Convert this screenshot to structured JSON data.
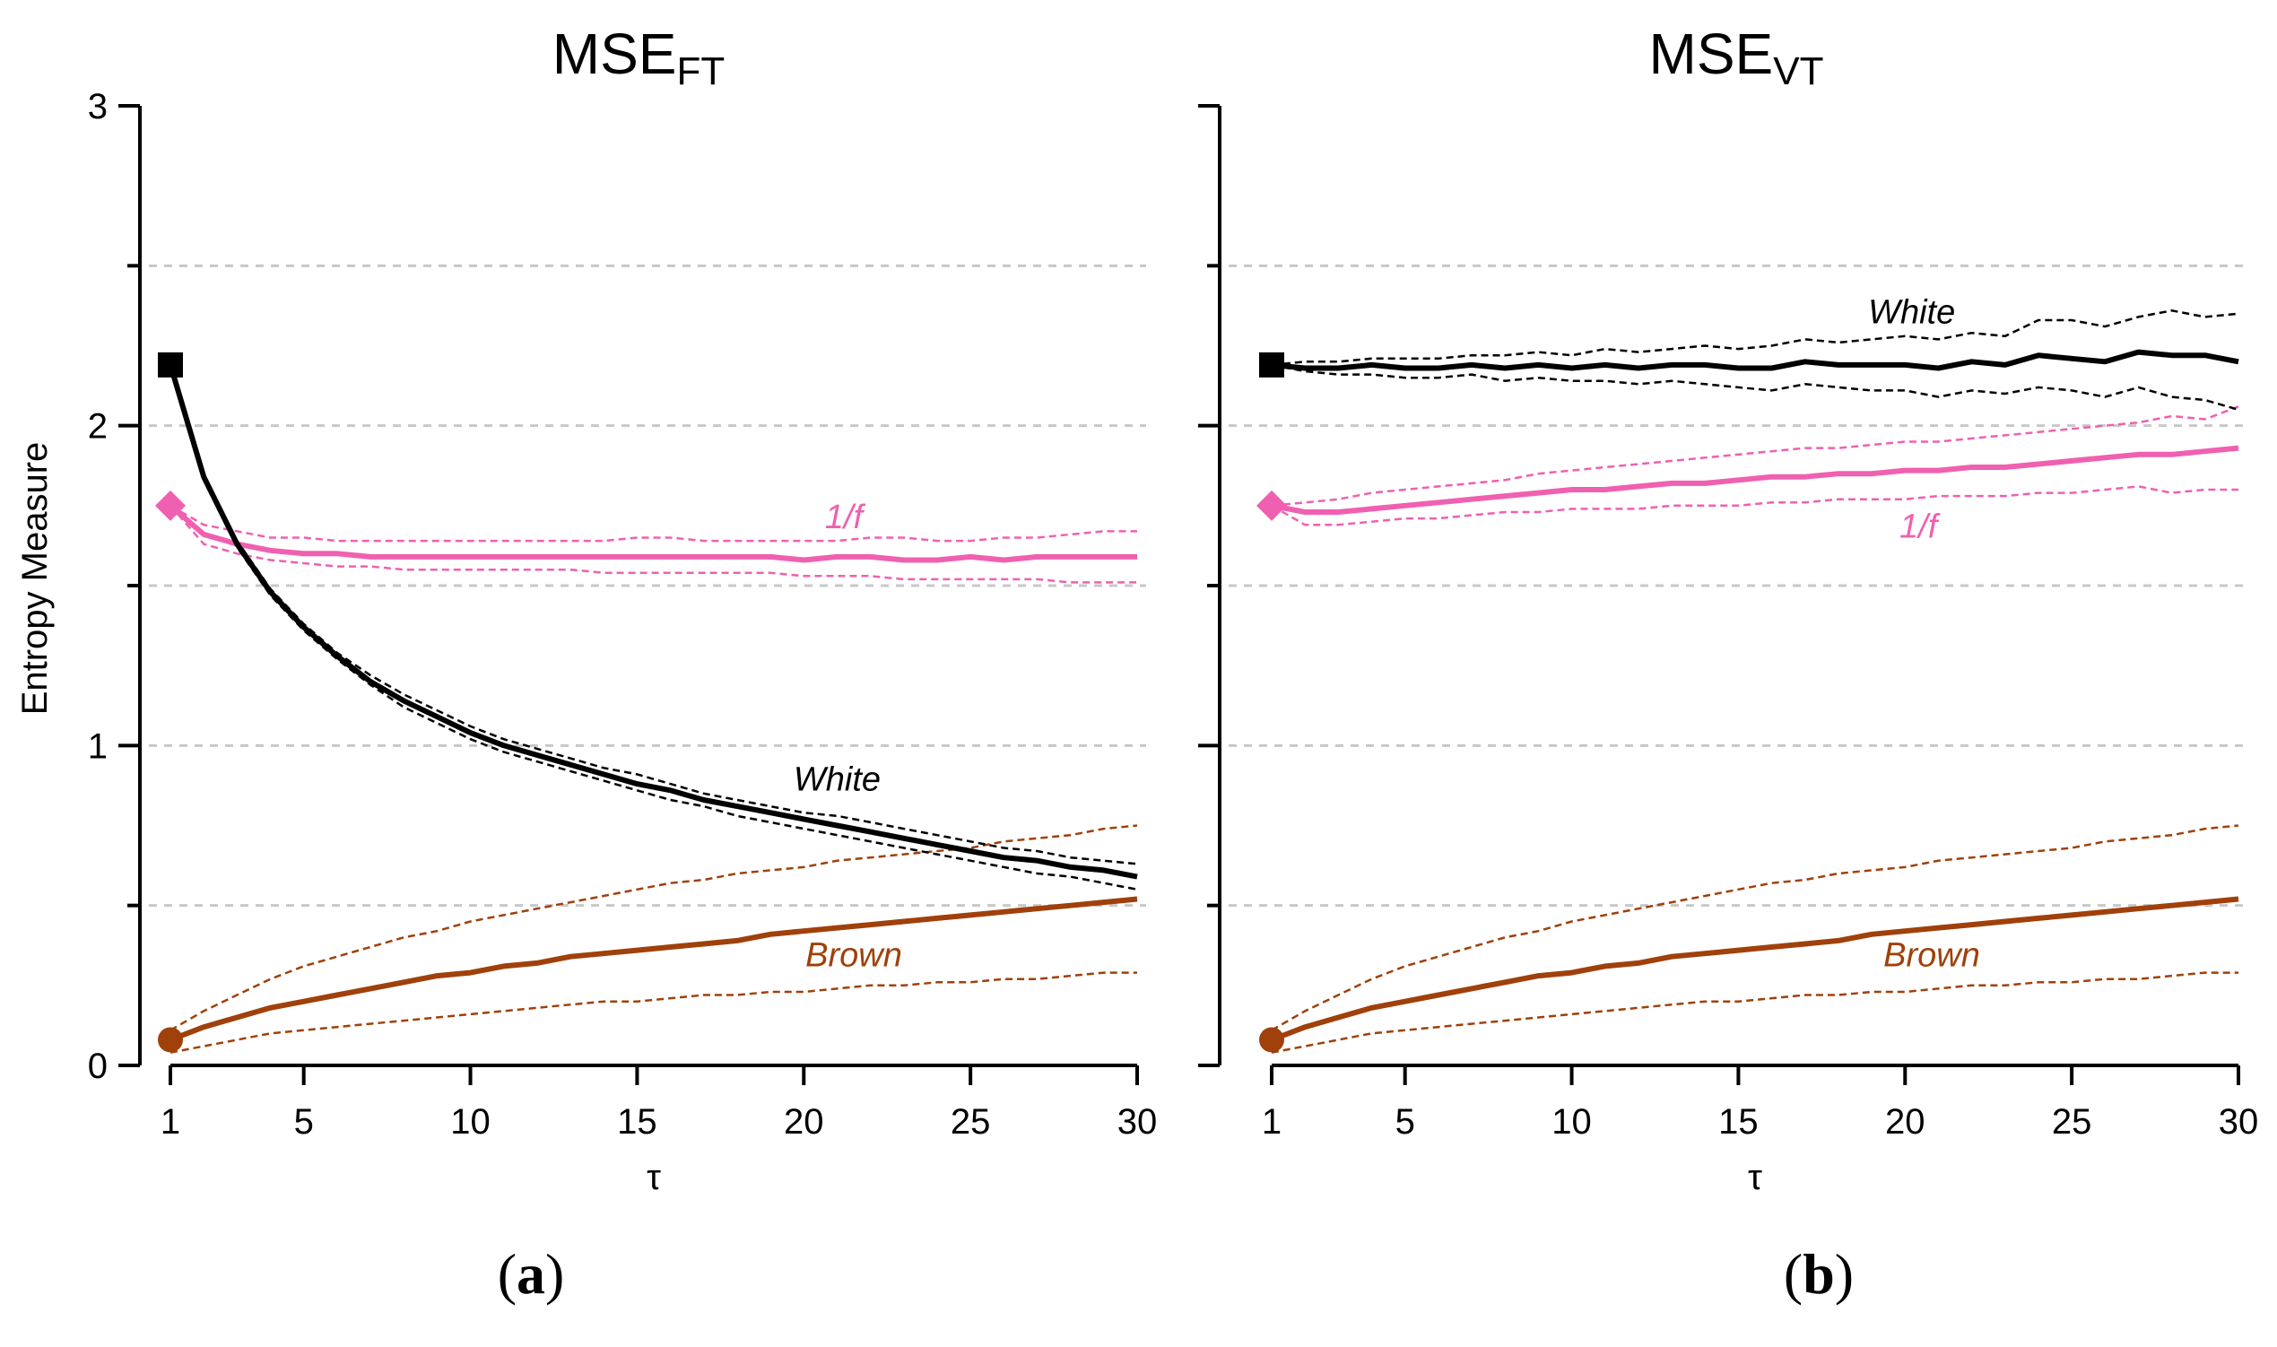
{
  "figure": {
    "panel_letters": [
      "a",
      "b"
    ],
    "ylabel": "Entropy Measure",
    "xlabel": "τ"
  },
  "chart_data": [
    {
      "type": "line",
      "title": "MSE",
      "title_subscript": "FT",
      "panel": "a",
      "xlabel": "τ",
      "ylabel": "Entropy Measure",
      "xlim": [
        0,
        30
      ],
      "ylim": [
        0,
        3
      ],
      "xticks": [
        1,
        5,
        10,
        15,
        20,
        25,
        30
      ],
      "yticks": [
        0,
        1,
        2,
        3
      ],
      "grid_y": [
        0.5,
        1.0,
        1.5,
        2.0,
        2.5
      ],
      "x": [
        1,
        2,
        3,
        4,
        5,
        6,
        7,
        8,
        9,
        10,
        11,
        12,
        13,
        14,
        15,
        16,
        17,
        18,
        19,
        20,
        21,
        22,
        23,
        24,
        25,
        26,
        27,
        28,
        29,
        30
      ],
      "series": [
        {
          "name": "White",
          "color": "#000000",
          "marker": "square",
          "values": [
            2.19,
            1.84,
            1.63,
            1.48,
            1.37,
            1.28,
            1.2,
            1.14,
            1.09,
            1.04,
            1.0,
            0.97,
            0.94,
            0.91,
            0.88,
            0.86,
            0.83,
            0.81,
            0.79,
            0.77,
            0.75,
            0.73,
            0.71,
            0.69,
            0.67,
            0.65,
            0.64,
            0.62,
            0.61,
            0.59
          ],
          "upper": [
            2.19,
            1.85,
            1.64,
            1.49,
            1.38,
            1.29,
            1.22,
            1.16,
            1.11,
            1.06,
            1.02,
            0.99,
            0.96,
            0.93,
            0.91,
            0.88,
            0.85,
            0.83,
            0.81,
            0.79,
            0.78,
            0.76,
            0.74,
            0.72,
            0.7,
            0.68,
            0.67,
            0.65,
            0.64,
            0.63
          ],
          "lower": [
            2.19,
            1.83,
            1.62,
            1.47,
            1.36,
            1.27,
            1.19,
            1.12,
            1.07,
            1.02,
            0.98,
            0.95,
            0.92,
            0.89,
            0.86,
            0.83,
            0.81,
            0.78,
            0.76,
            0.74,
            0.72,
            0.7,
            0.68,
            0.66,
            0.64,
            0.62,
            0.6,
            0.59,
            0.57,
            0.55
          ]
        },
        {
          "name": "1/f",
          "color": "#f060b0",
          "marker": "diamond",
          "values": [
            1.75,
            1.66,
            1.63,
            1.61,
            1.6,
            1.6,
            1.59,
            1.59,
            1.59,
            1.59,
            1.59,
            1.59,
            1.59,
            1.59,
            1.59,
            1.59,
            1.59,
            1.59,
            1.59,
            1.58,
            1.59,
            1.59,
            1.58,
            1.58,
            1.59,
            1.58,
            1.59,
            1.59,
            1.59,
            1.59
          ],
          "upper": [
            1.75,
            1.69,
            1.67,
            1.65,
            1.65,
            1.64,
            1.64,
            1.64,
            1.64,
            1.64,
            1.64,
            1.64,
            1.64,
            1.64,
            1.65,
            1.65,
            1.64,
            1.64,
            1.64,
            1.64,
            1.64,
            1.65,
            1.65,
            1.64,
            1.64,
            1.65,
            1.65,
            1.66,
            1.67,
            1.67
          ],
          "lower": [
            1.75,
            1.63,
            1.6,
            1.58,
            1.57,
            1.56,
            1.56,
            1.55,
            1.55,
            1.55,
            1.55,
            1.55,
            1.55,
            1.54,
            1.54,
            1.54,
            1.54,
            1.54,
            1.54,
            1.53,
            1.53,
            1.53,
            1.52,
            1.52,
            1.52,
            1.52,
            1.52,
            1.51,
            1.51,
            1.51
          ]
        },
        {
          "name": "Brown",
          "color": "#a0400a",
          "marker": "circle",
          "values": [
            0.08,
            0.12,
            0.15,
            0.18,
            0.2,
            0.22,
            0.24,
            0.26,
            0.28,
            0.29,
            0.31,
            0.32,
            0.34,
            0.35,
            0.36,
            0.37,
            0.38,
            0.39,
            0.41,
            0.42,
            0.43,
            0.44,
            0.45,
            0.46,
            0.47,
            0.48,
            0.49,
            0.5,
            0.51,
            0.52
          ],
          "upper": [
            0.11,
            0.17,
            0.22,
            0.27,
            0.31,
            0.34,
            0.37,
            0.4,
            0.42,
            0.45,
            0.47,
            0.49,
            0.51,
            0.53,
            0.55,
            0.57,
            0.58,
            0.6,
            0.61,
            0.62,
            0.64,
            0.65,
            0.66,
            0.67,
            0.68,
            0.7,
            0.71,
            0.72,
            0.74,
            0.75
          ],
          "lower": [
            0.04,
            0.06,
            0.08,
            0.1,
            0.11,
            0.12,
            0.13,
            0.14,
            0.15,
            0.16,
            0.17,
            0.18,
            0.19,
            0.2,
            0.2,
            0.21,
            0.22,
            0.22,
            0.23,
            0.23,
            0.24,
            0.25,
            0.25,
            0.26,
            0.26,
            0.27,
            0.27,
            0.28,
            0.29,
            0.29
          ]
        }
      ],
      "annotations": [
        {
          "text": "1/f",
          "series": "1/f",
          "x": 21.2,
          "y": 1.68
        },
        {
          "text": "White",
          "series": "White",
          "x": 21.0,
          "y": 0.86
        },
        {
          "text": "Brown",
          "series": "Brown",
          "x": 21.5,
          "y": 0.31
        }
      ]
    },
    {
      "type": "line",
      "title": "MSE",
      "title_subscript": "VT",
      "panel": "b",
      "xlabel": "τ",
      "ylabel": "Entropy Measure",
      "xlim": [
        0,
        30
      ],
      "ylim": [
        0,
        3
      ],
      "xticks": [
        1,
        5,
        10,
        15,
        20,
        25,
        30
      ],
      "yticks": [
        0,
        1,
        2,
        3
      ],
      "grid_y": [
        0.5,
        1.0,
        1.5,
        2.0,
        2.5
      ],
      "x": [
        1,
        2,
        3,
        4,
        5,
        6,
        7,
        8,
        9,
        10,
        11,
        12,
        13,
        14,
        15,
        16,
        17,
        18,
        19,
        20,
        21,
        22,
        23,
        24,
        25,
        26,
        27,
        28,
        29,
        30
      ],
      "series": [
        {
          "name": "White",
          "color": "#000000",
          "marker": "square",
          "values": [
            2.19,
            2.18,
            2.18,
            2.19,
            2.18,
            2.18,
            2.19,
            2.18,
            2.19,
            2.18,
            2.19,
            2.18,
            2.19,
            2.19,
            2.18,
            2.18,
            2.2,
            2.19,
            2.19,
            2.19,
            2.18,
            2.2,
            2.19,
            2.22,
            2.21,
            2.2,
            2.23,
            2.22,
            2.22,
            2.2
          ],
          "upper": [
            2.19,
            2.2,
            2.2,
            2.21,
            2.21,
            2.21,
            2.22,
            2.22,
            2.23,
            2.22,
            2.24,
            2.23,
            2.24,
            2.25,
            2.24,
            2.25,
            2.27,
            2.26,
            2.27,
            2.28,
            2.27,
            2.29,
            2.28,
            2.33,
            2.33,
            2.31,
            2.34,
            2.36,
            2.34,
            2.35
          ],
          "lower": [
            2.19,
            2.17,
            2.16,
            2.16,
            2.15,
            2.15,
            2.16,
            2.14,
            2.15,
            2.14,
            2.14,
            2.13,
            2.14,
            2.13,
            2.12,
            2.11,
            2.13,
            2.12,
            2.11,
            2.11,
            2.09,
            2.11,
            2.1,
            2.12,
            2.11,
            2.09,
            2.12,
            2.09,
            2.08,
            2.05
          ]
        },
        {
          "name": "1/f",
          "color": "#f060b0",
          "marker": "diamond",
          "values": [
            1.75,
            1.73,
            1.73,
            1.74,
            1.75,
            1.76,
            1.77,
            1.78,
            1.79,
            1.8,
            1.8,
            1.81,
            1.82,
            1.82,
            1.83,
            1.84,
            1.84,
            1.85,
            1.85,
            1.86,
            1.86,
            1.87,
            1.87,
            1.88,
            1.89,
            1.9,
            1.91,
            1.91,
            1.92,
            1.93
          ],
          "upper": [
            1.75,
            1.76,
            1.77,
            1.79,
            1.8,
            1.81,
            1.82,
            1.83,
            1.85,
            1.86,
            1.87,
            1.88,
            1.89,
            1.9,
            1.91,
            1.92,
            1.93,
            1.93,
            1.94,
            1.95,
            1.95,
            1.96,
            1.97,
            1.98,
            1.99,
            2.0,
            2.01,
            2.03,
            2.02,
            2.06
          ],
          "lower": [
            1.75,
            1.69,
            1.69,
            1.7,
            1.71,
            1.71,
            1.72,
            1.73,
            1.73,
            1.74,
            1.74,
            1.74,
            1.75,
            1.75,
            1.75,
            1.76,
            1.76,
            1.77,
            1.77,
            1.77,
            1.78,
            1.78,
            1.78,
            1.79,
            1.79,
            1.8,
            1.81,
            1.79,
            1.8,
            1.8
          ]
        },
        {
          "name": "Brown",
          "color": "#a0400a",
          "marker": "circle",
          "values": [
            0.08,
            0.12,
            0.15,
            0.18,
            0.2,
            0.22,
            0.24,
            0.26,
            0.28,
            0.29,
            0.31,
            0.32,
            0.34,
            0.35,
            0.36,
            0.37,
            0.38,
            0.39,
            0.41,
            0.42,
            0.43,
            0.44,
            0.45,
            0.46,
            0.47,
            0.48,
            0.49,
            0.5,
            0.51,
            0.52
          ],
          "upper": [
            0.11,
            0.17,
            0.22,
            0.27,
            0.31,
            0.34,
            0.37,
            0.4,
            0.42,
            0.45,
            0.47,
            0.49,
            0.51,
            0.53,
            0.55,
            0.57,
            0.58,
            0.6,
            0.61,
            0.62,
            0.64,
            0.65,
            0.66,
            0.67,
            0.68,
            0.7,
            0.71,
            0.72,
            0.74,
            0.75
          ],
          "lower": [
            0.04,
            0.06,
            0.08,
            0.1,
            0.11,
            0.12,
            0.13,
            0.14,
            0.15,
            0.16,
            0.17,
            0.18,
            0.19,
            0.2,
            0.2,
            0.21,
            0.22,
            0.22,
            0.23,
            0.23,
            0.24,
            0.25,
            0.25,
            0.26,
            0.26,
            0.27,
            0.27,
            0.28,
            0.29,
            0.29
          ]
        }
      ],
      "annotations": [
        {
          "text": "White",
          "series": "White",
          "x": 20.2,
          "y": 2.32
        },
        {
          "text": "1/f",
          "series": "1/f",
          "x": 20.4,
          "y": 1.65
        },
        {
          "text": "Brown",
          "series": "Brown",
          "x": 20.8,
          "y": 0.31
        }
      ]
    }
  ]
}
